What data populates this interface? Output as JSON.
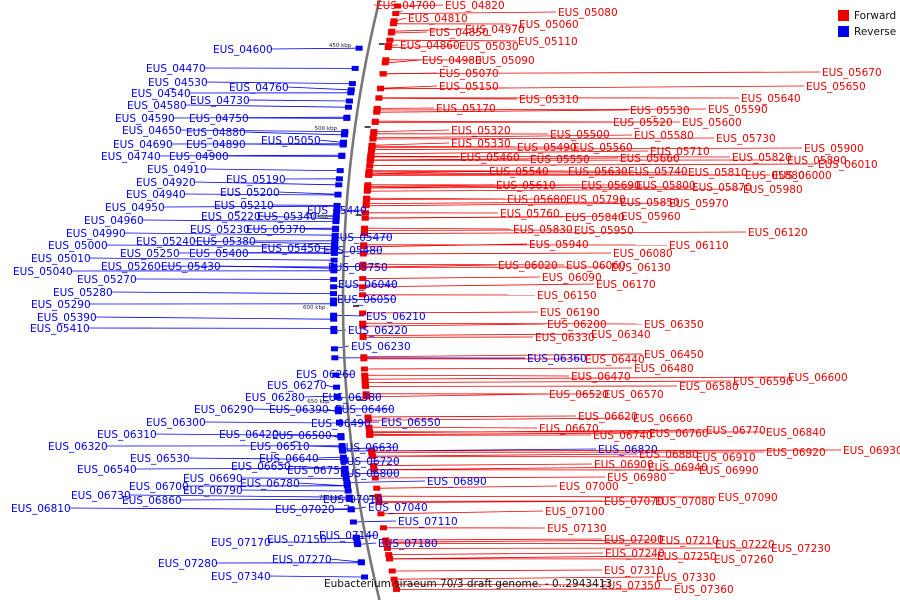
{
  "caption": "Eubacterium siraeum 70/3 draft genome. - 0..2943413",
  "colors": {
    "forward": "#ee0000",
    "reverse": "#0000ee",
    "backbone": "#777777"
  },
  "legend": [
    {
      "name": "Forward",
      "color": "#ee0000"
    },
    {
      "name": "Reverse",
      "color": "#0000ee"
    }
  ],
  "scale_ticks": [
    "450 kbp",
    "500 kbp",
    "550 kbp",
    "600 kbp",
    "650 kbp",
    "700 kbp"
  ],
  "forward_labels": [
    "EUS_04700",
    "EUS_04820",
    "EUS_05080",
    "EUS_04810",
    "EUS_05060",
    "EUS_04850",
    "EUS_04970",
    "EUS_05110",
    "EUS_04860",
    "EUS_05030",
    "EUS_04980",
    "EUS_05090",
    "EUS_05070",
    "EUS_05150",
    "EUS_05310",
    "EUS_05170",
    "EUS_05670",
    "EUS_05650",
    "EUS_05640",
    "EUS_05590",
    "EUS_05530",
    "EUS_05520",
    "EUS_05600",
    "EUS_05320",
    "EUS_05580",
    "EUS_05500",
    "EUS_05730",
    "EUS_05330",
    "EUS_05490",
    "EUS_05560",
    "EUS_05900",
    "EUS_05710",
    "EUS_05460",
    "EUS_05550",
    "EUS_05660",
    "EUS_05820",
    "EUS_05890",
    "EUS_06010",
    "EUS_05540",
    "EUS_05630",
    "EUS_05740",
    "EUS_05810",
    "EUS_05880",
    "EUS_06000",
    "EUS_05610",
    "EUS_05690",
    "EUS_05800",
    "EUS_05870",
    "EUS_05980",
    "EUS_05680",
    "EUS_05790",
    "EUS_05850",
    "EUS_05970",
    "EUS_05760",
    "EUS_05840",
    "EUS_05960",
    "EUS_05830",
    "EUS_05950",
    "EUS_06120",
    "EUS_05940",
    "EUS_06110",
    "EUS_06080",
    "EUS_06020",
    "EUS_06060",
    "EUS_06130",
    "EUS_06090",
    "EUS_06170",
    "EUS_06150",
    "EUS_06190",
    "EUS_06200",
    "EUS_06350",
    "EUS_06330",
    "EUS_06340",
    "EUS_06450",
    "EUS_06440",
    "EUS_06480",
    "EUS_06600",
    "EUS_06470",
    "EUS_06580",
    "EUS_06590",
    "EUS_06520",
    "EUS_06570",
    "EUS_06620",
    "EUS_06660",
    "EUS_06670",
    "EUS_06740",
    "EUS_06760",
    "EUS_06770",
    "EUS_06840",
    "EUS_06930",
    "EUS_06880",
    "EUS_06910",
    "EUS_06920",
    "EUS_06900",
    "EUS_06940",
    "EUS_06990",
    "EUS_06980",
    "EUS_07000",
    "EUS_07090",
    "EUS_07070",
    "EUS_07080",
    "EUS_07100",
    "EUS_07130",
    "EUS_07200",
    "EUS_07210",
    "EUS_07220",
    "EUS_07230",
    "EUS_07240",
    "EUS_07250",
    "EUS_07260",
    "EUS_07310",
    "EUS_07330",
    "EUS_07350",
    "EUS_07360"
  ],
  "reverse_labels": [
    "EUS_04600",
    "EUS_04470",
    "EUS_04530",
    "EUS_04760",
    "EUS_04540",
    "EUS_04730",
    "EUS_04580",
    "EUS_04590",
    "EUS_04750",
    "EUS_04650",
    "EUS_04880",
    "EUS_04690",
    "EUS_04890",
    "EUS_05050",
    "EUS_04740",
    "EUS_04900",
    "EUS_04910",
    "EUS_04920",
    "EUS_05190",
    "EUS_04940",
    "EUS_05200",
    "EUS_04950",
    "EUS_05210",
    "EUS_04960",
    "EUS_05220",
    "EUS_05340",
    "EUS_05440",
    "EUS_04990",
    "EUS_05230",
    "EUS_05370",
    "EUS_05000",
    "EUS_05240",
    "EUS_05380",
    "EUS_05470",
    "EUS_05010",
    "EUS_05250",
    "EUS_05400",
    "EUS_05450",
    "EUS_05480",
    "EUS_05040",
    "EUS_05260",
    "EUS_05430",
    "EUS_05750",
    "EUS_05270",
    "EUS_05280",
    "EUS_06040",
    "EUS_05290",
    "EUS_06050",
    "EUS_05390",
    "EUS_06210",
    "EUS_05410",
    "EUS_06220",
    "EUS_06230",
    "EUS_06360",
    "EUS_06260",
    "EUS_06270",
    "EUS_06280",
    "EUS_06380",
    "EUS_06290",
    "EUS_06390",
    "EUS_06460",
    "EUS_06300",
    "EUS_06420",
    "EUS_06490",
    "EUS_06550",
    "EUS_06310",
    "EUS_06500",
    "EUS_06320",
    "EUS_06510",
    "EUS_06630",
    "EUS_06640",
    "EUS_06720",
    "EUS_06530",
    "EUS_06650",
    "EUS_06750",
    "EUS_06800",
    "EUS_06820",
    "EUS_06540",
    "EUS_06690",
    "EUS_06890",
    "EUS_06780",
    "EUS_06700",
    "EUS_06790",
    "EUS_06730",
    "EUS_06860",
    "EUS_07010",
    "EUS_06810",
    "EUS_07040",
    "EUS_07020",
    "EUS_07110",
    "EUS_07140",
    "EUS_07150",
    "EUS_07170",
    "EUS_07180",
    "EUS_07270",
    "EUS_07280",
    "EUS_07340"
  ]
}
